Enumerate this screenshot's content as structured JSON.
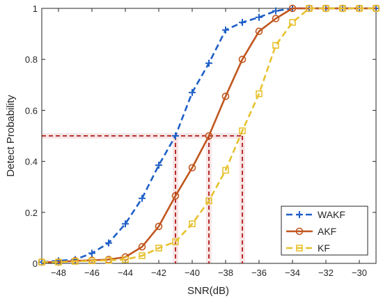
{
  "chart_data": {
    "type": "line",
    "xlabel": "SNR(dB)",
    "ylabel": "Detect Probability",
    "xlim": [
      -49,
      -29
    ],
    "ylim": [
      0,
      1
    ],
    "x_ticks": [
      -48,
      -46,
      -44,
      -42,
      -40,
      -38,
      -36,
      -34,
      -32,
      -30
    ],
    "x_tick_labels": [
      "−48",
      "−46",
      "−44",
      "−42",
      "−40",
      "−38",
      "−36",
      "−34",
      "−32",
      "−30"
    ],
    "y_ticks": [
      0,
      0.2,
      0.4,
      0.6,
      0.8,
      1
    ],
    "y_tick_labels": [
      "0",
      "0.2",
      "0.4",
      "0.6",
      "0.8",
      "1"
    ],
    "grid": false,
    "legend_position": "bottom-right",
    "x": [
      -49,
      -48,
      -47,
      -46,
      -45,
      -44,
      -43,
      -42,
      -41,
      -40,
      -39,
      -38,
      -37,
      -36,
      -35,
      -34,
      -33,
      -32,
      -31,
      -30,
      -29
    ],
    "series": [
      {
        "name": "WAKF",
        "color": "#1f5fc7",
        "line_style": "dashed",
        "marker": "plus",
        "values": [
          0.005,
          0.01,
          0.015,
          0.04,
          0.08,
          0.155,
          0.255,
          0.385,
          0.5,
          0.67,
          0.785,
          0.915,
          0.945,
          0.965,
          0.99,
          1,
          1,
          1,
          1,
          1,
          1
        ]
      },
      {
        "name": "AKF",
        "color": "#c0561e",
        "line_style": "solid",
        "marker": "circle",
        "values": [
          0.005,
          0.005,
          0.01,
          0.012,
          0.015,
          0.025,
          0.065,
          0.145,
          0.265,
          0.375,
          0.5,
          0.655,
          0.8,
          0.91,
          0.96,
          1,
          1,
          1,
          1,
          1,
          1
        ]
      },
      {
        "name": "KF",
        "color": "#e7c12f",
        "line_style": "dashed",
        "marker": "square",
        "values": [
          0.005,
          0.005,
          0.008,
          0.01,
          0.012,
          0.015,
          0.03,
          0.06,
          0.085,
          0.155,
          0.245,
          0.365,
          0.52,
          0.665,
          0.855,
          0.945,
          1,
          1,
          1,
          1,
          1
        ]
      }
    ],
    "annotations": {
      "color": "#b01818",
      "style": "dashed",
      "threshold_y": 0.5,
      "vertical_x": [
        -41,
        -39,
        -37
      ]
    }
  }
}
